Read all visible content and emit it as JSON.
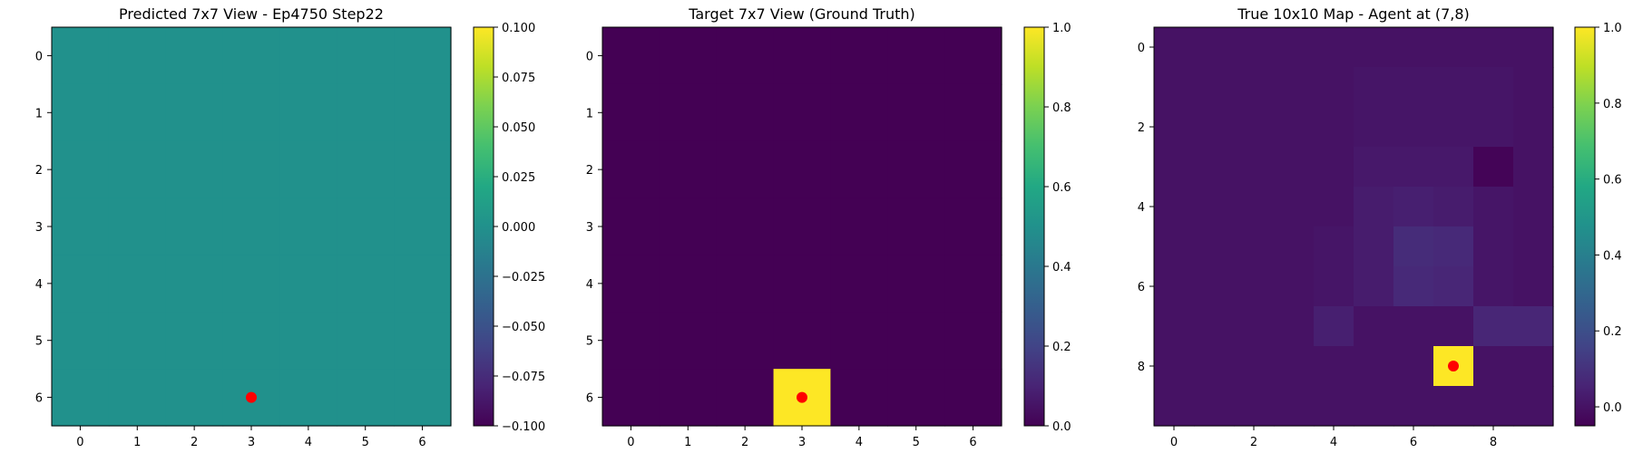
{
  "chart_data": [
    {
      "type": "heatmap",
      "title": "Predicted 7x7 View - Ep4750 Step22",
      "grid_size": 7,
      "xticks": [
        "0",
        "1",
        "2",
        "3",
        "4",
        "5",
        "6"
      ],
      "yticks": [
        "0",
        "1",
        "2",
        "3",
        "4",
        "5",
        "6"
      ],
      "values": [
        [
          0,
          0,
          0,
          0,
          0,
          0,
          0
        ],
        [
          0,
          0,
          0,
          0,
          0,
          0,
          0
        ],
        [
          0,
          0,
          0,
          0,
          0,
          0,
          0
        ],
        [
          0,
          0,
          0,
          0,
          0,
          0,
          0
        ],
        [
          0,
          0,
          0,
          0,
          0,
          0,
          0
        ],
        [
          0,
          0,
          0,
          0,
          0,
          0,
          0
        ],
        [
          0,
          0,
          0,
          0,
          0,
          0,
          0
        ]
      ],
      "vmin": -0.1,
      "vmax": 0.1,
      "colorbar_ticks": [
        "−0.100",
        "−0.075",
        "−0.050",
        "−0.025",
        "0.000",
        "0.025",
        "0.050",
        "0.075",
        "0.100"
      ],
      "colorbar_values": [
        -0.1,
        -0.075,
        -0.05,
        -0.025,
        0,
        0.025,
        0.05,
        0.075,
        0.1
      ],
      "marker": {
        "x": 3,
        "y": 6,
        "color": "#ff0000"
      },
      "colormap": "viridis"
    },
    {
      "type": "heatmap",
      "title": "Target 7x7 View (Ground Truth)",
      "grid_size": 7,
      "xticks": [
        "0",
        "1",
        "2",
        "3",
        "4",
        "5",
        "6"
      ],
      "yticks": [
        "0",
        "1",
        "2",
        "3",
        "4",
        "5",
        "6"
      ],
      "values": [
        [
          0,
          0,
          0,
          0,
          0,
          0,
          0
        ],
        [
          0,
          0,
          0,
          0,
          0,
          0,
          0
        ],
        [
          0,
          0,
          0,
          0,
          0,
          0,
          0
        ],
        [
          0,
          0,
          0,
          0,
          0,
          0,
          0
        ],
        [
          0,
          0,
          0,
          0,
          0,
          0,
          0
        ],
        [
          0,
          0,
          0,
          0,
          0,
          0,
          0
        ],
        [
          0,
          0,
          0,
          1,
          0,
          0,
          0
        ]
      ],
      "vmin": 0,
      "vmax": 1,
      "colorbar_ticks": [
        "0.0",
        "0.2",
        "0.4",
        "0.6",
        "0.8",
        "1.0"
      ],
      "colorbar_values": [
        0,
        0.2,
        0.4,
        0.6,
        0.8,
        1.0
      ],
      "marker": {
        "x": 3,
        "y": 6,
        "color": "#ff0000"
      },
      "colormap": "viridis"
    },
    {
      "type": "heatmap",
      "title": "True 10x10 Map - Agent at (7,8)",
      "grid_size": 10,
      "xticks": [
        "0",
        "2",
        "4",
        "6",
        "8"
      ],
      "xtick_values": [
        0,
        2,
        4,
        6,
        8
      ],
      "yticks": [
        "0",
        "2",
        "4",
        "6",
        "8"
      ],
      "ytick_values": [
        0,
        2,
        4,
        6,
        8
      ],
      "values": [
        [
          0.0,
          0.0,
          0.0,
          0.0,
          0.0,
          0.0,
          0.0,
          0.0,
          0.0,
          0.0
        ],
        [
          0.0,
          0.0,
          0.0,
          0.0,
          0.0,
          0.01,
          0.01,
          0.01,
          0.01,
          0.0
        ],
        [
          0.0,
          0.0,
          0.0,
          0.0,
          0.0,
          0.01,
          0.01,
          0.01,
          0.01,
          0.0
        ],
        [
          0.0,
          0.0,
          0.0,
          0.0,
          0.0,
          0.02,
          0.02,
          0.02,
          -0.04,
          0.0
        ],
        [
          0.0,
          0.0,
          0.0,
          0.0,
          0.0,
          0.03,
          0.04,
          0.03,
          0.01,
          0.0
        ],
        [
          0.0,
          0.0,
          0.0,
          0.0,
          0.01,
          0.03,
          0.08,
          0.07,
          0.01,
          0.0
        ],
        [
          0.0,
          0.0,
          0.0,
          0.0,
          0.01,
          0.03,
          0.07,
          0.06,
          0.01,
          0.0
        ],
        [
          0.0,
          0.0,
          0.0,
          0.0,
          0.04,
          0.0,
          0.0,
          0.0,
          0.06,
          0.06
        ],
        [
          0.0,
          0.0,
          0.0,
          0.0,
          0.0,
          0.0,
          0.0,
          1.0,
          0.0,
          0.0
        ],
        [
          0.0,
          0.0,
          0.0,
          0.0,
          0.0,
          0.0,
          0.0,
          0.0,
          0.0,
          0.0
        ]
      ],
      "vmin": -0.05,
      "vmax": 1.0,
      "colorbar_ticks": [
        "0.0",
        "0.2",
        "0.4",
        "0.6",
        "0.8",
        "1.0"
      ],
      "colorbar_values": [
        0,
        0.2,
        0.4,
        0.6,
        0.8,
        1.0
      ],
      "marker": {
        "x": 7,
        "y": 8,
        "color": "#ff0000"
      },
      "colormap": "viridis"
    }
  ]
}
